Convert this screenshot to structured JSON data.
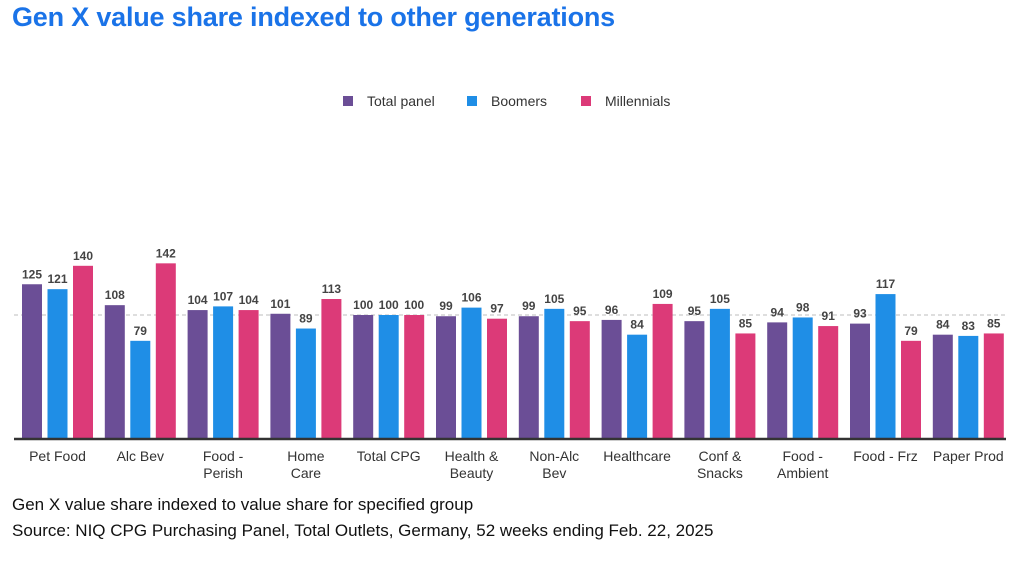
{
  "chart_data": {
    "type": "bar",
    "title": "Gen X value share indexed to other generations",
    "categories": [
      [
        "Pet Food"
      ],
      [
        "Alc Bev"
      ],
      [
        "Food -",
        "Perish"
      ],
      [
        "Home",
        "Care"
      ],
      [
        "Total CPG"
      ],
      [
        "Health &",
        "Beauty"
      ],
      [
        "Non-Alc",
        "Bev"
      ],
      [
        "Healthcare"
      ],
      [
        "Conf &",
        "Snacks"
      ],
      [
        "Food -",
        "Ambient"
      ],
      [
        "Food - Frz"
      ],
      [
        "Paper Prod"
      ]
    ],
    "series": [
      {
        "name": "Total panel",
        "color": "#6b4e96",
        "values": [
          125,
          108,
          104,
          101,
          100,
          99,
          99,
          96,
          95,
          94,
          93,
          84
        ]
      },
      {
        "name": "Boomers",
        "color": "#1f8ee6",
        "values": [
          121,
          79,
          107,
          89,
          100,
          106,
          105,
          84,
          105,
          98,
          117,
          83
        ]
      },
      {
        "name": "Millennials",
        "color": "#dc3a78",
        "values": [
          140,
          142,
          104,
          113,
          100,
          97,
          95,
          109,
          85,
          91,
          79,
          85
        ]
      }
    ],
    "reference_line": 100,
    "ylim": [
      0,
      150
    ],
    "legend_position": "top-center",
    "xlabel": "",
    "ylabel": ""
  },
  "footer": {
    "line1": "Gen X value share indexed to value share for specified group",
    "line2": "Source: NIQ CPG Purchasing Panel, Total Outlets, Germany, 52 weeks ending Feb. 22, 2025"
  }
}
